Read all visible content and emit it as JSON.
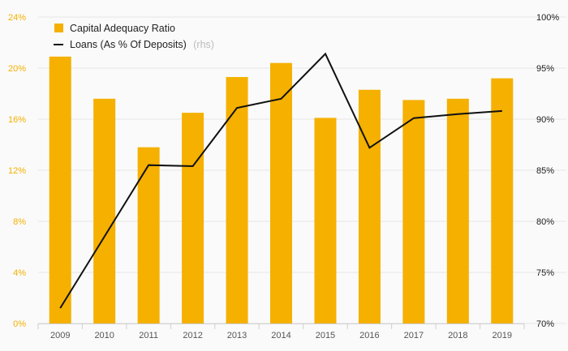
{
  "chart_data": {
    "type": "bar",
    "categories": [
      "2009",
      "2010",
      "2011",
      "2012",
      "2013",
      "2014",
      "2015",
      "2016",
      "2017",
      "2018",
      "2019"
    ],
    "series": [
      {
        "name": "Capital Adequacy Ratio",
        "kind": "bar",
        "axis": "left",
        "color": "#f5b000",
        "values": [
          20.9,
          17.6,
          13.8,
          16.5,
          19.3,
          20.4,
          16.1,
          18.3,
          17.5,
          17.6,
          19.2
        ]
      },
      {
        "name": "Loans (As % Of Deposits)",
        "suffix": "(rhs)",
        "kind": "line",
        "axis": "right",
        "color": "#111111",
        "values": [
          71.5,
          78.5,
          85.5,
          85.4,
          91.1,
          92.0,
          96.4,
          87.2,
          90.1,
          90.5,
          90.8
        ]
      }
    ],
    "y_left": {
      "min": 0,
      "max": 24,
      "ticks": [
        "0%",
        "4%",
        "8%",
        "12%",
        "16%",
        "20%",
        "24%"
      ]
    },
    "y_right": {
      "min": 70,
      "max": 100,
      "ticks": [
        "70%",
        "75%",
        "80%",
        "85%",
        "90%",
        "95%",
        "100%"
      ]
    },
    "grid": true,
    "legend_position": "top-left"
  }
}
